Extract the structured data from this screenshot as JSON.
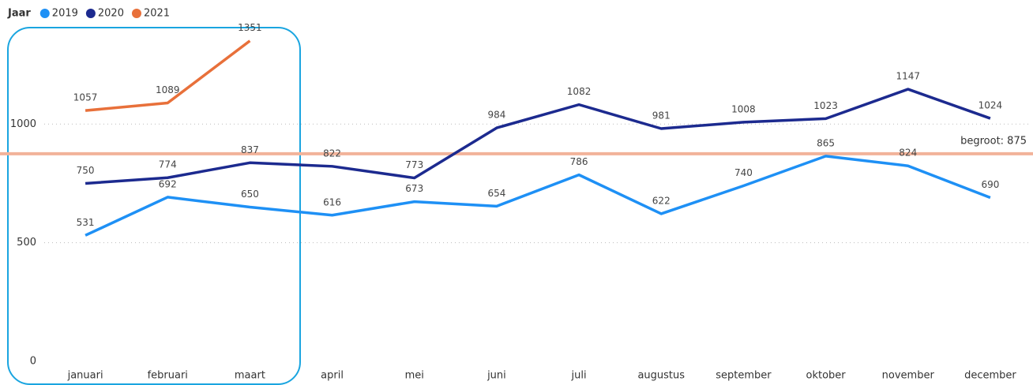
{
  "chart_data": {
    "type": "line",
    "legend_title": "Jaar",
    "categories": [
      "januari",
      "februari",
      "maart",
      "april",
      "mei",
      "juni",
      "juli",
      "augustus",
      "september",
      "oktober",
      "november",
      "december"
    ],
    "series": [
      {
        "name": "2019",
        "color": "#1e90f5",
        "values": [
          531,
          692,
          650,
          616,
          673,
          654,
          786,
          622,
          740,
          865,
          824,
          690
        ]
      },
      {
        "name": "2020",
        "color": "#1c2a8f",
        "values": [
          750,
          774,
          837,
          822,
          773,
          984,
          1082,
          981,
          1008,
          1023,
          1147,
          1024
        ]
      },
      {
        "name": "2021",
        "color": "#e8703a",
        "values": [
          1057,
          1089,
          1351,
          null,
          null,
          null,
          null,
          null,
          null,
          null,
          null,
          null
        ]
      }
    ],
    "reference_line": {
      "value": 875,
      "label": "begroot: 875",
      "color": "#f2b39a"
    },
    "ylim": [
      0,
      1400
    ],
    "yticks": [
      0,
      500,
      1000
    ],
    "grid": true,
    "legend": "top-left"
  }
}
